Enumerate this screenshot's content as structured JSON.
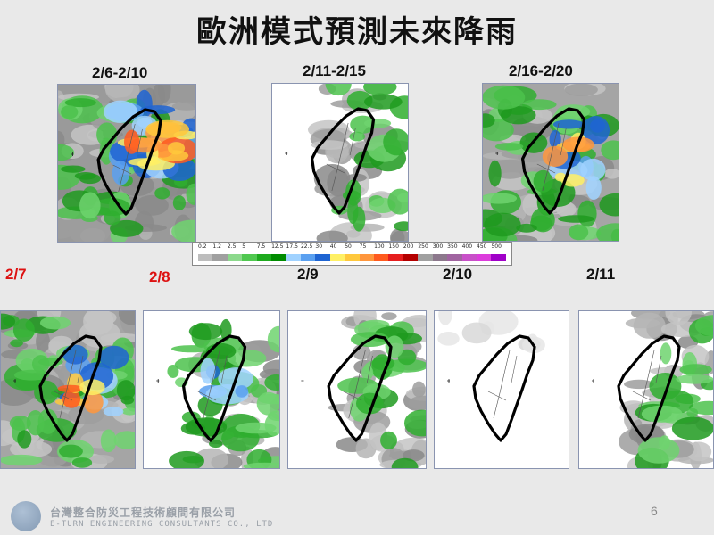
{
  "title": "歐洲模式預測未來降雨",
  "top_panels": [
    {
      "label": "2/6-2/10",
      "intensity": "heavy"
    },
    {
      "label": "2/11-2/15",
      "intensity": "light"
    },
    {
      "label": "2/16-2/20",
      "intensity": "moderate"
    }
  ],
  "bottom_panels": [
    {
      "label": "2/7",
      "highlight": true,
      "intensity": "moderate"
    },
    {
      "label": "2/8",
      "highlight": true,
      "intensity": "light-moderate"
    },
    {
      "label": "2/9",
      "highlight": false,
      "intensity": "light"
    },
    {
      "label": "2/10",
      "highlight": false,
      "intensity": "none"
    },
    {
      "label": "2/11",
      "highlight": false,
      "intensity": "light"
    }
  ],
  "legend": {
    "ticks": [
      "0.2",
      "1.2",
      "2.5",
      "5",
      "7.5",
      "12.5",
      "17.5",
      "22.5",
      "30",
      "40",
      "50",
      "75",
      "100",
      "150",
      "200",
      "250",
      "300",
      "350",
      "400",
      "450",
      "500"
    ],
    "colors": [
      "#bdbdbd",
      "#a0a0a0",
      "#8cd98c",
      "#50c850",
      "#1eaa1e",
      "#008c00",
      "#a0d2ff",
      "#5aa0f0",
      "#1e64d2",
      "#fff064",
      "#ffc83c",
      "#ff963c",
      "#ff5a1e",
      "#e61e1e",
      "#b40000",
      "#a0a0a0",
      "#8c788c",
      "#a064a0",
      "#c850c8",
      "#dc3cdc",
      "#a000c8"
    ]
  },
  "footer": {
    "company_cn": "台灣整合防災工程技術顧問有限公司",
    "company_en": "E-TURN ENGINEERING CONSULTANTS CO., LTD",
    "page_number": "6"
  }
}
